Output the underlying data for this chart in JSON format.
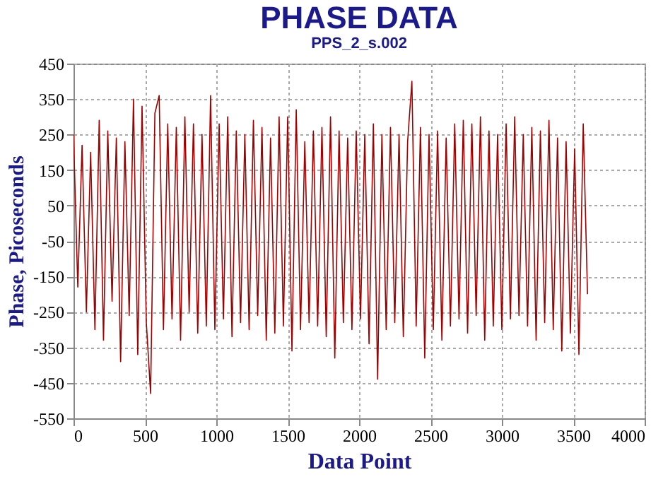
{
  "chart_data": {
    "type": "line",
    "title": "PHASE DATA",
    "subtitle": "PPS_2_s.002",
    "xlabel": "Data Point",
    "ylabel": "Phase, Picoseconds",
    "x": [
      0,
      30,
      60,
      90,
      120,
      150,
      180,
      210,
      240,
      270,
      300,
      330,
      360,
      390,
      420,
      450,
      480,
      510,
      540,
      570,
      600,
      630,
      660,
      690,
      720,
      750,
      780,
      810,
      840,
      870,
      900,
      930,
      960,
      990,
      1020,
      1050,
      1080,
      1110,
      1140,
      1170,
      1200,
      1230,
      1260,
      1290,
      1320,
      1350,
      1380,
      1410,
      1440,
      1470,
      1500,
      1530,
      1560,
      1590,
      1620,
      1650,
      1680,
      1710,
      1740,
      1770,
      1800,
      1830,
      1860,
      1890,
      1920,
      1950,
      1980,
      2010,
      2040,
      2070,
      2100,
      2130,
      2160,
      2190,
      2220,
      2250,
      2280,
      2310,
      2340,
      2370,
      2400,
      2430,
      2460,
      2490,
      2520,
      2550,
      2580,
      2610,
      2640,
      2670,
      2700,
      2730,
      2760,
      2790,
      2820,
      2850,
      2880,
      2910,
      2940,
      2970,
      3000,
      3030,
      3060,
      3090,
      3120,
      3150,
      3180,
      3210,
      3240,
      3270,
      3300,
      3330,
      3360,
      3390,
      3420,
      3450,
      3480,
      3510,
      3540,
      3570,
      3600
    ],
    "series": [
      {
        "color": "#a00000",
        "values": [
          250,
          -180,
          220,
          -250,
          200,
          -300,
          290,
          -330,
          260,
          -220,
          240,
          -390,
          230,
          -260,
          350,
          -370,
          330,
          -280,
          -480,
          310,
          360,
          -300,
          280,
          -270,
          270,
          -330,
          300,
          -250,
          280,
          -310,
          250,
          -290,
          360,
          -300,
          280,
          -270,
          300,
          -320,
          260,
          -280,
          250,
          -300,
          290,
          -260,
          270,
          -330,
          240,
          -310,
          300,
          -290,
          300,
          -360,
          320,
          -300,
          230,
          -280,
          260,
          -290,
          270,
          -320,
          300,
          -380,
          260,
          -280,
          240,
          -300,
          260,
          -270,
          250,
          -340,
          280,
          -440,
          250,
          -300,
          270,
          -280,
          250,
          -320,
          230,
          400,
          -290,
          270,
          -380,
          250,
          -300,
          260,
          -330,
          240,
          -290,
          280,
          -270,
          290,
          -310,
          280,
          -260,
          300,
          -330,
          260,
          -290,
          250,
          -300,
          280,
          -270,
          300,
          -260,
          250,
          -290,
          270,
          -330,
          260,
          -280,
          290,
          -300,
          240,
          -360,
          230,
          -310,
          210,
          -370,
          280,
          -200
        ]
      }
    ],
    "xlim": [
      0,
      4000
    ],
    "xticks": [
      0,
      500,
      1000,
      1500,
      2000,
      2500,
      3000,
      3500,
      4000
    ],
    "ylim": [
      -550,
      450
    ],
    "yticks": [
      -550,
      -450,
      -350,
      -250,
      -150,
      -50,
      50,
      150,
      250,
      350,
      450
    ],
    "grid": true,
    "marker": "none",
    "line_style": "solid"
  }
}
